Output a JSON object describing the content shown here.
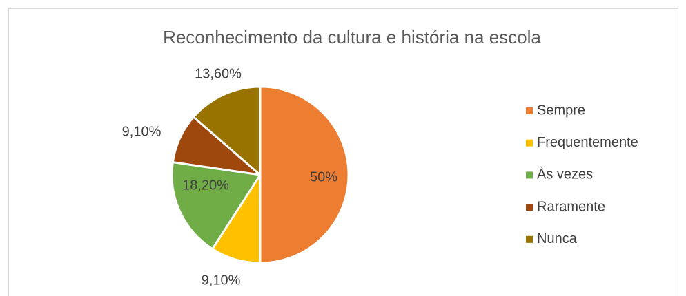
{
  "chart_data": {
    "type": "pie",
    "title": "Reconhecimento da cultura e história na escola",
    "categories": [
      "Sempre",
      "Frequentemente",
      "Às vezes",
      "Raramente",
      "Nunca"
    ],
    "values": [
      50,
      9.1,
      18.2,
      9.1,
      13.6
    ],
    "value_labels": [
      "50%",
      "9,10%",
      "18,20%",
      "9,10%",
      "13,60%"
    ],
    "colors": [
      "#ed7d31",
      "#ffc000",
      "#70ad47",
      "#9e480e",
      "#997300"
    ],
    "legend": "right"
  }
}
